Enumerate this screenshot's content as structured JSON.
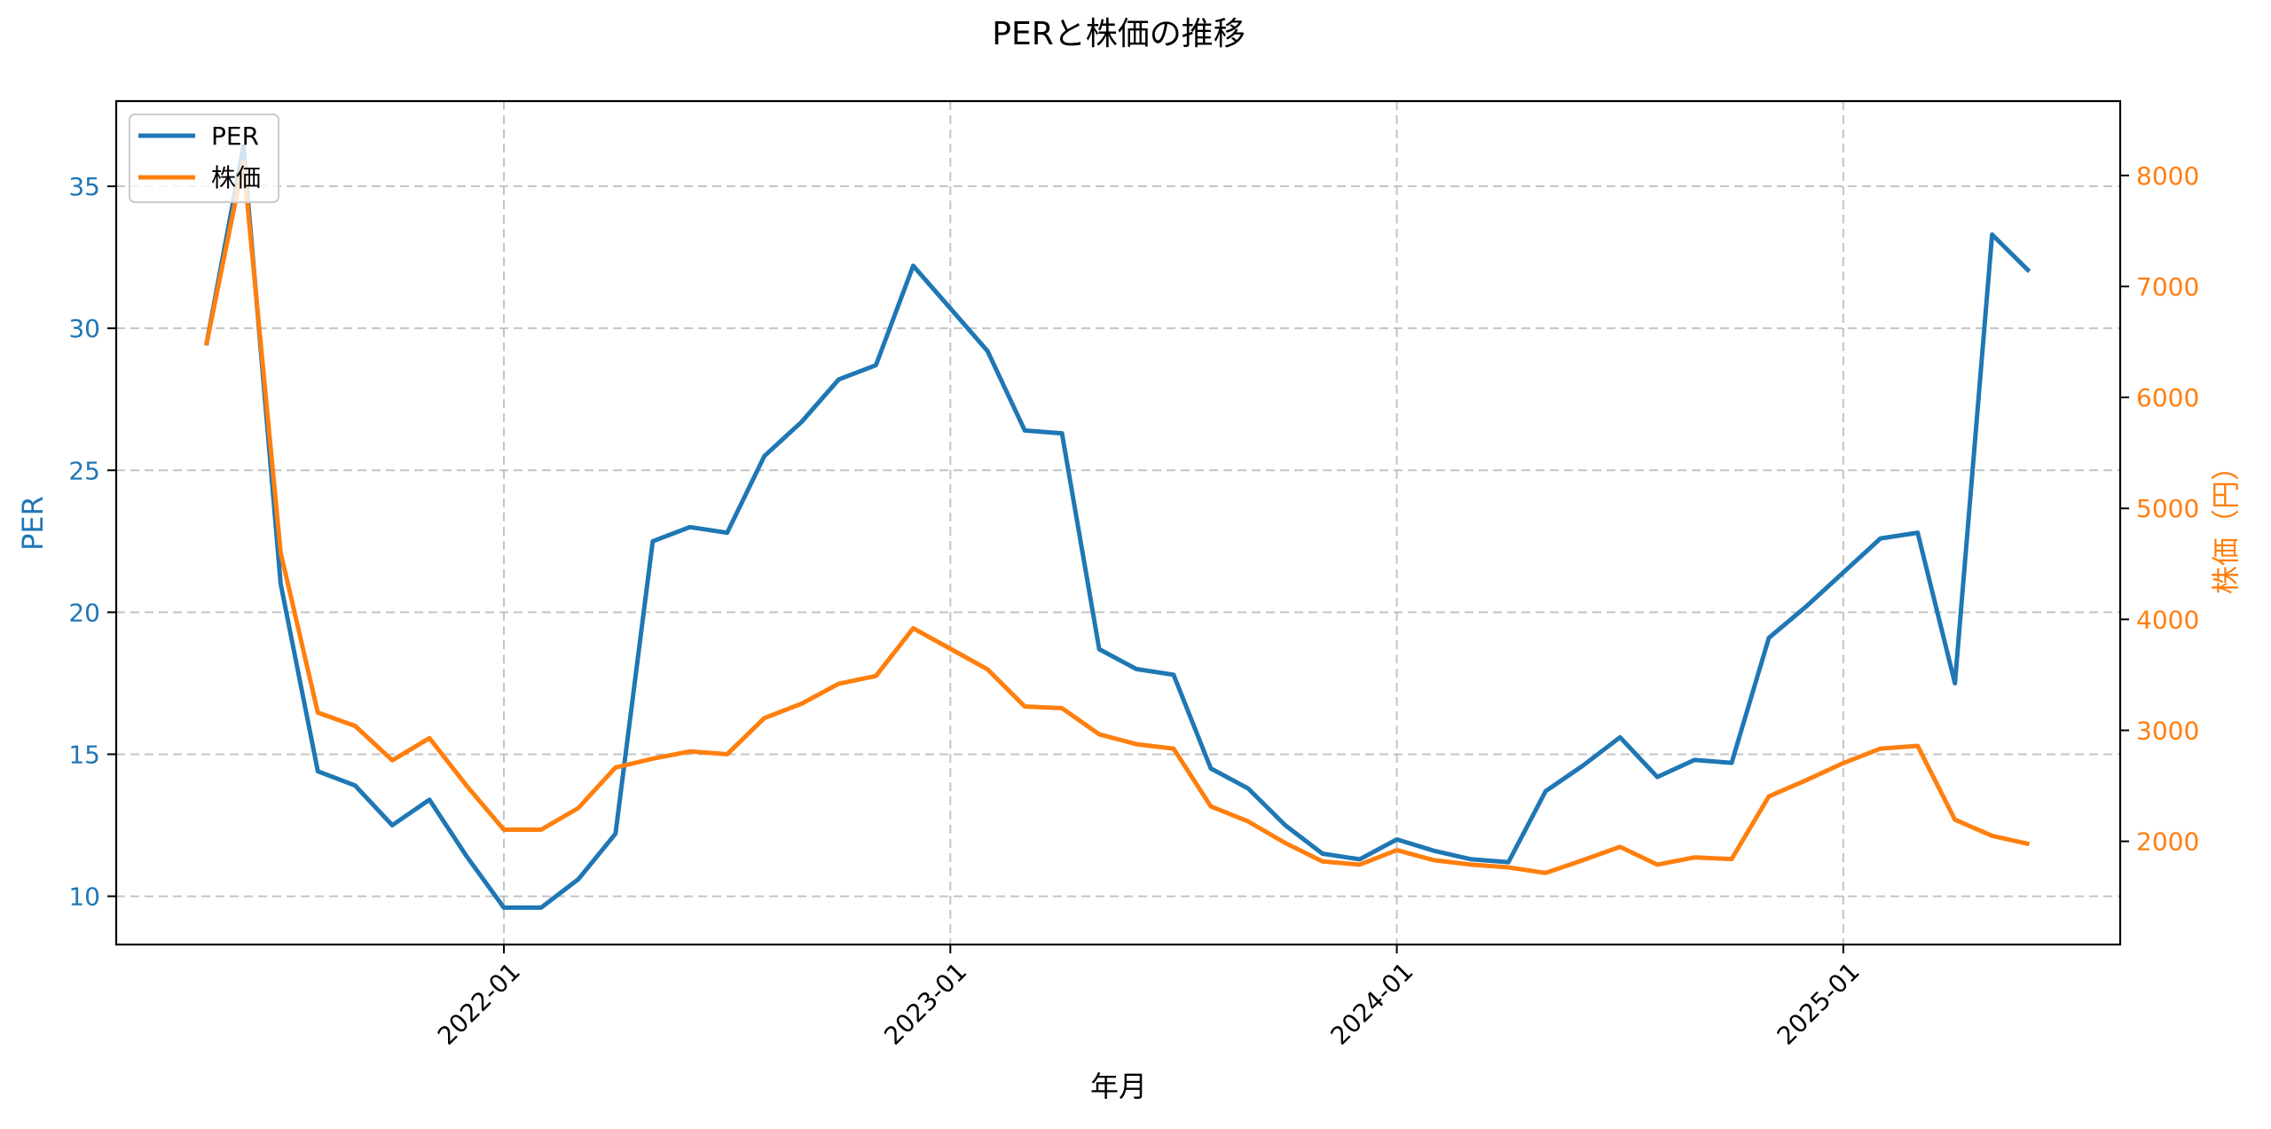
{
  "figure": {
    "title": "PERと株価の推移",
    "xlabel": "年月",
    "ylabel_left": "PER",
    "ylabel_right": "株価（円）"
  },
  "legend": {
    "position": "upper left",
    "items": [
      {
        "label": "PER",
        "color": "#1f77b4"
      },
      {
        "label": "株価",
        "color": "#ff7f0e"
      }
    ]
  },
  "colors": {
    "per": "#1f77b4",
    "price": "#ff7f0e",
    "grid": "#b0b0b0",
    "axes": "#000000"
  },
  "chart_data": {
    "type": "line",
    "title": "PERと株価の推移",
    "xlabel": "年月",
    "ylabel": "PER",
    "ylabel_right": "株価（円）",
    "grid": true,
    "legend_position": "upper left",
    "xticks": [
      "2022-01",
      "2023-01",
      "2024-01",
      "2025-01"
    ],
    "yticks_left": [
      10,
      15,
      20,
      25,
      30,
      35
    ],
    "yticks_right": [
      2000,
      3000,
      4000,
      5000,
      6000,
      7000,
      8000
    ],
    "ylim": [
      8.3,
      38.0
    ],
    "ylim_right": [
      1070,
      8670
    ],
    "x": [
      "2021-05",
      "2021-06",
      "2021-07",
      "2021-08",
      "2021-09",
      "2021-10",
      "2021-11",
      "2021-12",
      "2022-01",
      "2022-02",
      "2022-03",
      "2022-04",
      "2022-05",
      "2022-06",
      "2022-07",
      "2022-08",
      "2022-09",
      "2022-10",
      "2022-11",
      "2022-12",
      "2023-01",
      "2023-02",
      "2023-03",
      "2023-04",
      "2023-05",
      "2023-06",
      "2023-07",
      "2023-08",
      "2023-09",
      "2023-10",
      "2023-11",
      "2023-12",
      "2024-01",
      "2024-02",
      "2024-03",
      "2024-04",
      "2024-05",
      "2024-06",
      "2024-07",
      "2024-08",
      "2024-09",
      "2024-10",
      "2024-11",
      "2024-12",
      "2025-01",
      "2025-02",
      "2025-03",
      "2025-04",
      "2025-05",
      "2025-06"
    ],
    "series": [
      {
        "name": "PER",
        "axis": "left",
        "color": "#1f77b4",
        "values": [
          29.4,
          36.4,
          21.0,
          14.4,
          13.9,
          12.5,
          13.4,
          11.4,
          9.6,
          9.6,
          10.6,
          12.2,
          22.5,
          23.0,
          22.8,
          25.5,
          26.7,
          28.2,
          28.7,
          32.2,
          30.7,
          29.2,
          26.4,
          26.3,
          18.7,
          18.0,
          17.8,
          14.5,
          13.8,
          12.5,
          11.5,
          11.3,
          12.0,
          11.6,
          11.3,
          11.2,
          13.7,
          14.6,
          15.6,
          14.2,
          14.8,
          14.7,
          19.1,
          20.2,
          21.4,
          22.6,
          22.8,
          17.5,
          33.3,
          32.0
        ]
      },
      {
        "name": "株価",
        "axis": "right",
        "color": "#ff7f0e",
        "values": [
          6470,
          8120,
          4600,
          3160,
          3040,
          2730,
          2930,
          2500,
          2105,
          2105,
          2300,
          2665,
          2745,
          2810,
          2785,
          3110,
          3240,
          3420,
          3490,
          3920,
          3735,
          3550,
          3215,
          3200,
          2965,
          2875,
          2835,
          2315,
          2180,
          1985,
          1820,
          1790,
          1920,
          1830,
          1790,
          1765,
          1715,
          1830,
          1950,
          1790,
          1855,
          1840,
          2405,
          2550,
          2705,
          2835,
          2860,
          2195,
          2050,
          1975
        ]
      }
    ]
  }
}
